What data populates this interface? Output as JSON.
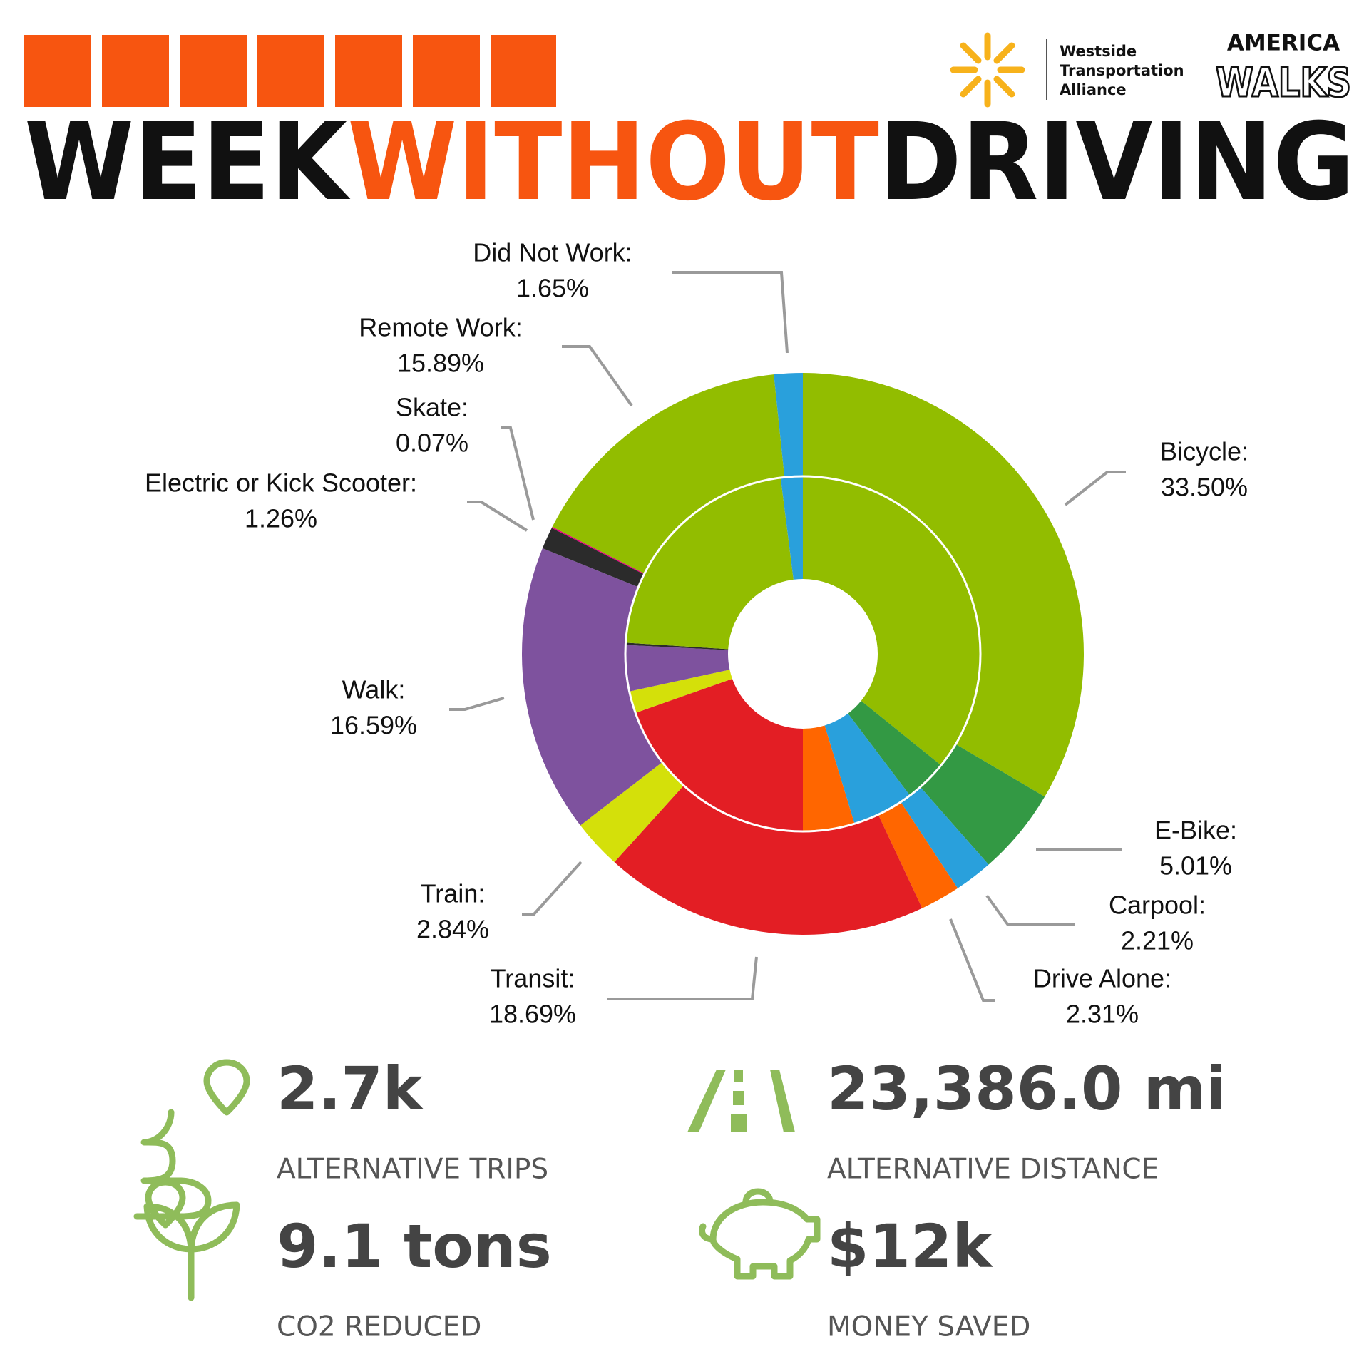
{
  "header": {
    "title": [
      "WEEK",
      "WITHOUT",
      "DRIVING"
    ],
    "logos": {
      "westside": [
        "Westside",
        "Transportation",
        "Alliance"
      ],
      "america_walks": [
        "AMERICA",
        "WALKS"
      ]
    }
  },
  "chart_data": {
    "type": "sunburst",
    "categories": [
      "Bicycle:",
      "E-Bike:",
      "Carpool:",
      "Drive Alone:",
      "Transit:",
      "Train:",
      "Walk:",
      "Electric or Kick Scooter:",
      "Skate:",
      "Remote Work:",
      "Did Not Work:"
    ],
    "colors": [
      "#92bd00",
      "#339944",
      "#29a0dc",
      "#ff6600",
      "#e31e24",
      "#d4e00a",
      "#7e529e",
      "#2b2b2b",
      "#e6007e",
      "#92bd00",
      "#29a0dc"
    ],
    "series": [
      {
        "values": [
          33.5,
          5.01,
          2.21,
          2.31,
          18.69,
          2.84,
          16.59,
          1.26,
          0.07,
          15.89,
          1.65
        ],
        "value_labels": [
          "33.50%",
          "5.01%",
          "2.21%",
          "2.31%",
          "18.69%",
          "2.84%",
          "16.59%",
          "1.26%",
          "0.07%",
          "15.89%",
          "1.65%"
        ]
      },
      {
        "values": [
          35.8,
          3.9,
          5.6,
          4.7,
          19.6,
          2,
          4.2,
          0.2,
          0,
          22,
          2
        ]
      }
    ]
  },
  "stats": [
    {
      "value": "2.7k",
      "label": "ALTERNATIVE TRIPS"
    },
    {
      "value": "23,386.0 mi",
      "label": "ALTERNATIVE DISTANCE"
    },
    {
      "value": "9.1 tons",
      "label": "CO2 REDUCED"
    },
    {
      "value": "$12k",
      "label": "MONEY SAVED"
    }
  ]
}
